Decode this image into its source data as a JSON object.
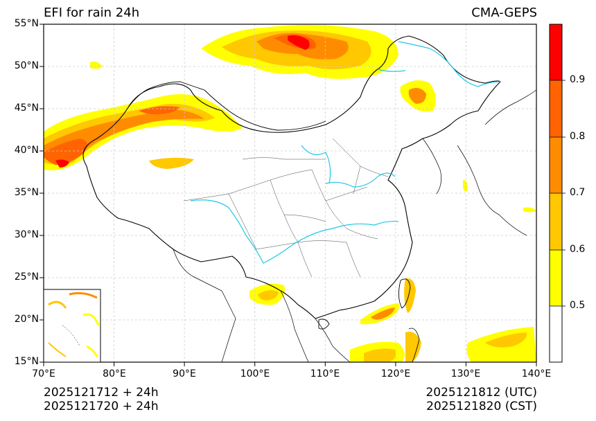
{
  "title": {
    "left": "EFI for rain 24h",
    "right": "CMA-GEPS"
  },
  "axes": {
    "lat_labels": [
      "55°N",
      "50°N",
      "45°N",
      "40°N",
      "35°N",
      "30°N",
      "25°N",
      "20°N",
      "15°N"
    ],
    "lon_labels": [
      "70°E",
      "80°E",
      "90°E",
      "100°E",
      "110°E",
      "120°E",
      "130°E",
      "140°E"
    ],
    "lat_range": [
      15,
      55
    ],
    "lon_range": [
      70,
      140
    ],
    "grid": true
  },
  "colorbar": {
    "ticks": [
      "0.5",
      "0.6",
      "0.7",
      "0.8",
      "0.9"
    ],
    "levels": [
      0.4,
      0.5,
      0.6,
      0.7,
      0.8,
      0.9,
      1.0
    ],
    "colors": [
      "#ffffff",
      "#ffff00",
      "#ffc800",
      "#ff8c00",
      "#ff6400",
      "#ff0000"
    ]
  },
  "footer": {
    "left_line1": "2025121712 + 24h",
    "left_line2": "2025121720 + 24h",
    "right_line1": "2025121812 (UTC)",
    "right_line2": "2025121820 (CST)"
  },
  "colors": {
    "river": "#1ec8e6",
    "border": "#000000",
    "province": "#333333",
    "grid": "#cccccc"
  }
}
